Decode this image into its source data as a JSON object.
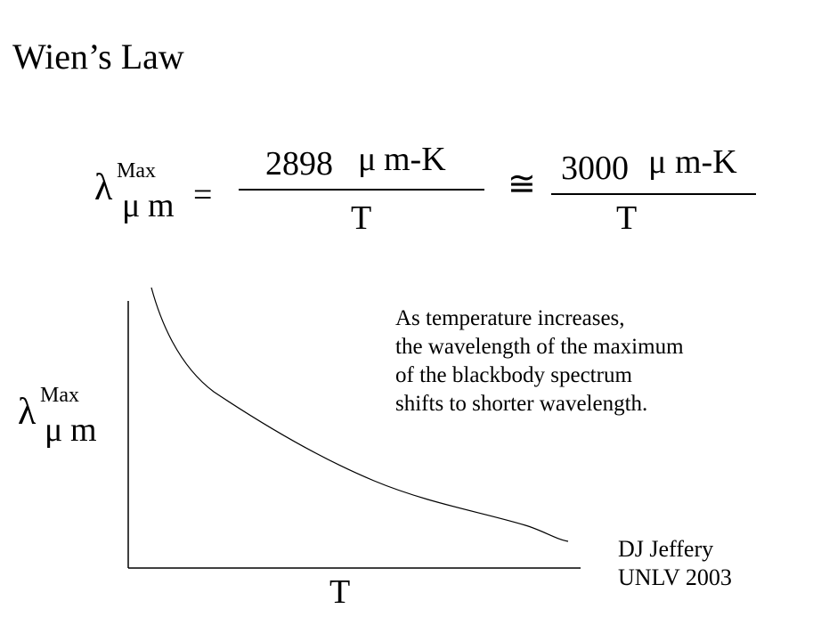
{
  "title": "Wien’s Law",
  "formula": {
    "lhs_symbol": "λ",
    "lhs_superscript": "Max",
    "lhs_subscript_mu": "μ",
    "lhs_subscript_unit": "m",
    "equals": "=",
    "numerator_1_value": "2898",
    "numerator_1_mu": "μ",
    "numerator_1_unit": "m-K",
    "denominator_1": "T",
    "approx_symbol": "≅",
    "numerator_2_value": "3000",
    "numerator_2_mu": "μ",
    "numerator_2_unit": "m-K",
    "denominator_2": "T"
  },
  "plot": {
    "y_axis_symbol": "λ",
    "y_axis_superscript": "Max",
    "y_axis_subscript_mu": "μ",
    "y_axis_subscript_unit": "m",
    "x_axis_label": "T",
    "curve": "decreasing"
  },
  "description": [
    "As temperature increases,",
    "the wavelength of the maximum",
    "of the blackbody spectrum",
    "shifts to shorter wavelength."
  ],
  "credit": [
    "DJ Jeffery",
    "UNLV 2003"
  ]
}
